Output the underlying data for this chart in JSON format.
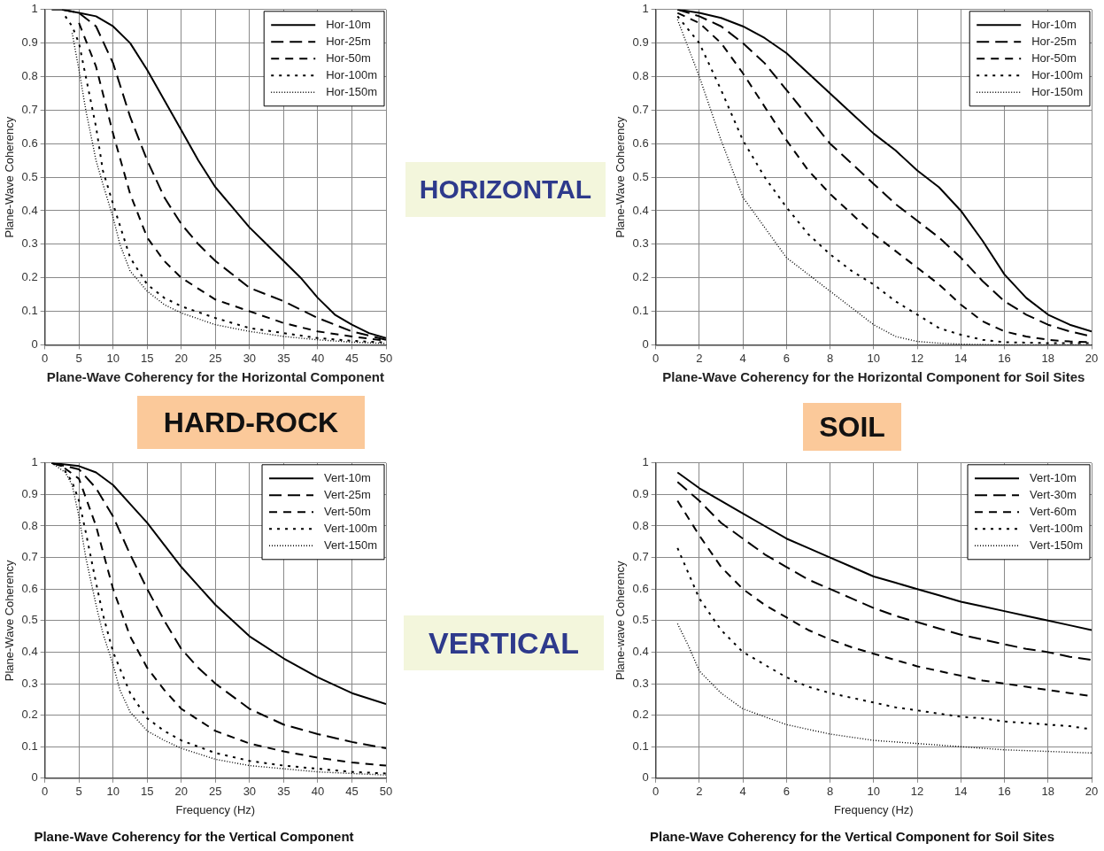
{
  "chart_data": [
    {
      "type": "line",
      "xlabel": "Plane-Wave Coherency for the Horizontal Component",
      "ylabel": "Plane-Wave Coherency",
      "xlim": [
        0,
        50
      ],
      "xticks": [
        0,
        5,
        10,
        15,
        20,
        25,
        30,
        35,
        40,
        45,
        50
      ],
      "ylim": [
        0,
        1
      ],
      "yticks": [
        0,
        0.1,
        0.2,
        0.3,
        0.4,
        0.5,
        0.6,
        0.7,
        0.8,
        0.9,
        1
      ],
      "grid": true,
      "legend": "top right",
      "marker": "none",
      "series": [
        {
          "name": "Hor-10m",
          "color": "#000000",
          "line_style": "solid",
          "x": [
            1,
            2.5,
            5,
            7.5,
            10,
            12.5,
            15,
            17.5,
            20,
            22.5,
            25,
            27.5,
            30,
            32.5,
            35,
            37.5,
            40,
            42.5,
            45,
            47.5,
            50
          ],
          "values": [
            1,
            1,
            0.99,
            0.98,
            0.95,
            0.9,
            0.82,
            0.73,
            0.64,
            0.55,
            0.47,
            0.41,
            0.35,
            0.3,
            0.25,
            0.2,
            0.14,
            0.09,
            0.06,
            0.035,
            0.02
          ]
        },
        {
          "name": "Hor-25m",
          "color": "#000000",
          "line_style": "dashed",
          "x": [
            2.5,
            5,
            7.5,
            10,
            12.5,
            15,
            17.5,
            20,
            22.5,
            25,
            30,
            35,
            40,
            45,
            50
          ],
          "values": [
            1,
            0.99,
            0.95,
            0.84,
            0.68,
            0.55,
            0.44,
            0.36,
            0.3,
            0.25,
            0.17,
            0.13,
            0.08,
            0.04,
            0.015
          ]
        },
        {
          "name": "Hor-50m",
          "color": "#000000",
          "line_style": "dashed",
          "x": [
            5,
            7.5,
            10,
            12.5,
            15,
            17.5,
            20,
            25,
            30,
            35,
            40,
            45,
            50
          ],
          "values": [
            0.96,
            0.83,
            0.63,
            0.45,
            0.32,
            0.25,
            0.2,
            0.135,
            0.1,
            0.065,
            0.04,
            0.025,
            0.012
          ]
        },
        {
          "name": "Hor-100m",
          "color": "#000000",
          "line_style": "dotted",
          "x": [
            3,
            4,
            5,
            6,
            7.5,
            8.5,
            10,
            12.5,
            15,
            17.5,
            20,
            25,
            30,
            35,
            40,
            45,
            50
          ],
          "values": [
            0.98,
            0.95,
            0.9,
            0.8,
            0.65,
            0.52,
            0.42,
            0.26,
            0.18,
            0.14,
            0.115,
            0.08,
            0.05,
            0.035,
            0.02,
            0.012,
            0.007
          ]
        },
        {
          "name": "Hor-150m",
          "color": "#000000",
          "line_style": "dotted",
          "x": [
            4,
            5,
            6,
            7.5,
            8.5,
            10,
            11,
            12.5,
            15,
            17.5,
            20,
            25,
            30,
            35,
            40,
            45,
            50
          ],
          "values": [
            0.93,
            0.82,
            0.7,
            0.55,
            0.48,
            0.38,
            0.3,
            0.22,
            0.16,
            0.12,
            0.095,
            0.06,
            0.04,
            0.025,
            0.015,
            0.008,
            0.004
          ]
        }
      ]
    },
    {
      "type": "line",
      "xlabel": "Plane-Wave Coherency for the Horizontal Component for Soil Sites",
      "ylabel": "Plane-Wave Coherency",
      "xlim": [
        0,
        20
      ],
      "xticks": [
        0,
        2,
        4,
        6,
        8,
        10,
        12,
        14,
        16,
        18,
        20
      ],
      "ylim": [
        0,
        1
      ],
      "yticks": [
        0,
        0.1,
        0.2,
        0.3,
        0.4,
        0.5,
        0.6,
        0.7,
        0.8,
        0.9,
        1
      ],
      "grid": true,
      "legend": "top right",
      "marker": "none",
      "series": [
        {
          "name": "Hor-10m",
          "color": "#000000",
          "line_style": "solid",
          "x": [
            1,
            2,
            3,
            4,
            5,
            6,
            7,
            8,
            9,
            10,
            11,
            12,
            13,
            14,
            15,
            16,
            17,
            18,
            19,
            20
          ],
          "values": [
            1,
            0.99,
            0.975,
            0.95,
            0.915,
            0.87,
            0.81,
            0.75,
            0.69,
            0.63,
            0.58,
            0.52,
            0.47,
            0.4,
            0.31,
            0.21,
            0.14,
            0.09,
            0.06,
            0.04
          ]
        },
        {
          "name": "Hor-25m",
          "color": "#000000",
          "line_style": "dashed",
          "x": [
            1,
            2,
            3,
            4,
            5,
            6,
            7,
            8,
            9,
            10,
            11,
            12,
            13,
            14,
            15,
            16,
            17,
            18,
            19,
            20
          ],
          "values": [
            1,
            0.98,
            0.95,
            0.9,
            0.84,
            0.76,
            0.68,
            0.6,
            0.54,
            0.48,
            0.42,
            0.37,
            0.32,
            0.26,
            0.19,
            0.13,
            0.09,
            0.06,
            0.04,
            0.025
          ]
        },
        {
          "name": "Hor-50m",
          "color": "#000000",
          "line_style": "dashed",
          "x": [
            1,
            2,
            3,
            4,
            5,
            6,
            7,
            8,
            9,
            10,
            11,
            12,
            13,
            14,
            15,
            16,
            17,
            18,
            19,
            20
          ],
          "values": [
            0.99,
            0.96,
            0.9,
            0.81,
            0.71,
            0.61,
            0.52,
            0.45,
            0.39,
            0.33,
            0.28,
            0.23,
            0.18,
            0.12,
            0.07,
            0.04,
            0.025,
            0.015,
            0.01,
            0.008
          ]
        },
        {
          "name": "Hor-100m",
          "color": "#000000",
          "line_style": "dotted",
          "x": [
            1,
            2,
            3,
            4,
            5,
            6,
            7,
            8,
            9,
            10,
            11,
            12,
            13,
            14,
            15,
            16,
            18,
            20
          ],
          "values": [
            0.98,
            0.9,
            0.76,
            0.61,
            0.5,
            0.41,
            0.33,
            0.27,
            0.22,
            0.18,
            0.13,
            0.09,
            0.05,
            0.03,
            0.015,
            0.008,
            0.005,
            0.005
          ]
        },
        {
          "name": "Hor-150m",
          "color": "#000000",
          "line_style": "dotted",
          "x": [
            1,
            2,
            3,
            4,
            5,
            6,
            7,
            8,
            9,
            10,
            11,
            12,
            13,
            14,
            16,
            20
          ],
          "values": [
            0.97,
            0.8,
            0.61,
            0.44,
            0.35,
            0.26,
            0.21,
            0.16,
            0.11,
            0.06,
            0.025,
            0.01,
            0.005,
            0.002,
            0,
            0
          ]
        }
      ]
    },
    {
      "type": "line",
      "title": "Plane-Wave Coherency for the Vertical Component",
      "xlabel": "Frequency (Hz)",
      "ylabel": "Plane-Wave Coherency",
      "xlim": [
        0,
        50
      ],
      "xticks": [
        0,
        5,
        10,
        15,
        20,
        25,
        30,
        35,
        40,
        45,
        50
      ],
      "ylim": [
        0,
        1
      ],
      "yticks": [
        0,
        0.1,
        0.2,
        0.3,
        0.4,
        0.5,
        0.6,
        0.7,
        0.8,
        0.9,
        1
      ],
      "grid": true,
      "legend": "top right",
      "marker": "none",
      "series": [
        {
          "name": "Vert-10m",
          "color": "#000000",
          "line_style": "solid",
          "x": [
            1,
            5,
            7.5,
            10,
            12.5,
            15,
            17.5,
            20,
            22.5,
            25,
            27.5,
            30,
            35,
            40,
            45,
            50
          ],
          "values": [
            1,
            0.99,
            0.97,
            0.93,
            0.87,
            0.81,
            0.74,
            0.67,
            0.61,
            0.55,
            0.5,
            0.45,
            0.38,
            0.32,
            0.27,
            0.235
          ]
        },
        {
          "name": "Vert-25m",
          "color": "#000000",
          "line_style": "dashed",
          "x": [
            1,
            5,
            7.5,
            10,
            12.5,
            15,
            17.5,
            20,
            22.5,
            25,
            30,
            35,
            40,
            45,
            50
          ],
          "values": [
            1,
            0.98,
            0.92,
            0.83,
            0.71,
            0.6,
            0.5,
            0.41,
            0.35,
            0.3,
            0.22,
            0.17,
            0.14,
            0.115,
            0.095
          ]
        },
        {
          "name": "Vert-50m",
          "color": "#000000",
          "line_style": "dashed",
          "x": [
            1,
            2.5,
            5,
            7.5,
            10,
            12.5,
            15,
            17.5,
            20,
            25,
            30,
            35,
            40,
            45,
            50
          ],
          "values": [
            1,
            0.99,
            0.95,
            0.8,
            0.6,
            0.45,
            0.35,
            0.28,
            0.22,
            0.15,
            0.11,
            0.085,
            0.065,
            0.05,
            0.04
          ]
        },
        {
          "name": "Vert-100m",
          "color": "#000000",
          "line_style": "dotted",
          "x": [
            1,
            2.5,
            4,
            5,
            6,
            7.5,
            8.5,
            10,
            12.5,
            15,
            17.5,
            20,
            25,
            30,
            35,
            40,
            45,
            50
          ],
          "values": [
            1,
            0.99,
            0.94,
            0.88,
            0.78,
            0.62,
            0.52,
            0.4,
            0.27,
            0.19,
            0.15,
            0.12,
            0.08,
            0.055,
            0.04,
            0.03,
            0.02,
            0.015
          ]
        },
        {
          "name": "Vert-150m",
          "color": "#000000",
          "line_style": "dotted",
          "x": [
            1,
            3,
            4,
            5,
            6,
            7.5,
            8.5,
            10,
            11,
            12.5,
            15,
            17.5,
            20,
            25,
            30,
            35,
            40,
            45,
            50
          ],
          "values": [
            1,
            0.97,
            0.93,
            0.83,
            0.7,
            0.55,
            0.46,
            0.36,
            0.28,
            0.21,
            0.15,
            0.12,
            0.095,
            0.06,
            0.04,
            0.03,
            0.02,
            0.015,
            0.01
          ]
        }
      ]
    },
    {
      "type": "line",
      "title": "Plane-Wave Coherency for the Vertical Component for Soil Sites",
      "xlabel": "Frequency (Hz)",
      "ylabel": "Plane-wave Coherency",
      "xlim": [
        0,
        20
      ],
      "xticks": [
        0,
        2,
        4,
        6,
        8,
        10,
        12,
        14,
        16,
        18,
        20
      ],
      "ylim": [
        0,
        1
      ],
      "yticks": [
        0,
        0.1,
        0.2,
        0.3,
        0.4,
        0.5,
        0.6,
        0.7,
        0.8,
        0.9,
        1
      ],
      "grid": true,
      "legend": "top right",
      "marker": "none",
      "series": [
        {
          "name": "Vert-10m",
          "color": "#000000",
          "line_style": "solid",
          "x": [
            1,
            2,
            3,
            4,
            5,
            6,
            7,
            8,
            9,
            10,
            11,
            12,
            13,
            14,
            15,
            16,
            17,
            18,
            19,
            20
          ],
          "values": [
            0.97,
            0.92,
            0.88,
            0.84,
            0.8,
            0.76,
            0.73,
            0.7,
            0.67,
            0.64,
            0.62,
            0.6,
            0.58,
            0.56,
            0.545,
            0.53,
            0.515,
            0.5,
            0.485,
            0.47
          ]
        },
        {
          "name": "Vert-30m",
          "color": "#000000",
          "line_style": "dashed",
          "x": [
            1,
            2,
            3,
            4,
            5,
            6,
            7,
            8,
            9,
            10,
            11,
            12,
            13,
            14,
            15,
            16,
            17,
            18,
            19,
            20
          ],
          "values": [
            0.94,
            0.88,
            0.81,
            0.76,
            0.71,
            0.67,
            0.63,
            0.6,
            0.57,
            0.54,
            0.515,
            0.495,
            0.475,
            0.455,
            0.44,
            0.425,
            0.41,
            0.4,
            0.385,
            0.375
          ]
        },
        {
          "name": "Vert-60m",
          "color": "#000000",
          "line_style": "dashed",
          "x": [
            1,
            2,
            3,
            4,
            5,
            6,
            7,
            8,
            9,
            10,
            11,
            12,
            13,
            14,
            15,
            16,
            17,
            18,
            19,
            20
          ],
          "values": [
            0.88,
            0.77,
            0.67,
            0.6,
            0.55,
            0.51,
            0.47,
            0.44,
            0.415,
            0.395,
            0.375,
            0.355,
            0.34,
            0.325,
            0.31,
            0.3,
            0.29,
            0.28,
            0.27,
            0.26
          ]
        },
        {
          "name": "Vert-100m",
          "color": "#000000",
          "line_style": "dotted",
          "x": [
            1,
            2,
            3,
            4,
            5,
            6,
            7,
            8,
            9,
            10,
            11,
            12,
            13,
            14,
            15,
            16,
            17,
            18,
            19,
            20
          ],
          "values": [
            0.73,
            0.57,
            0.47,
            0.4,
            0.36,
            0.32,
            0.29,
            0.27,
            0.255,
            0.24,
            0.225,
            0.215,
            0.205,
            0.195,
            0.19,
            0.18,
            0.175,
            0.17,
            0.165,
            0.155
          ]
        },
        {
          "name": "Vert-150m",
          "color": "#000000",
          "line_style": "dotted",
          "x": [
            1,
            1.5,
            2,
            3,
            4,
            5,
            6,
            7,
            8,
            9,
            10,
            12,
            14,
            16,
            18,
            20
          ],
          "values": [
            0.49,
            0.42,
            0.34,
            0.27,
            0.22,
            0.195,
            0.17,
            0.155,
            0.14,
            0.13,
            0.12,
            0.11,
            0.1,
            0.09,
            0.085,
            0.08
          ]
        }
      ]
    },
    {
      "type": "other",
      "annotations": [
        "HORIZONTAL",
        "HARD-ROCK",
        "SOIL",
        "VERTICAL"
      ]
    }
  ]
}
